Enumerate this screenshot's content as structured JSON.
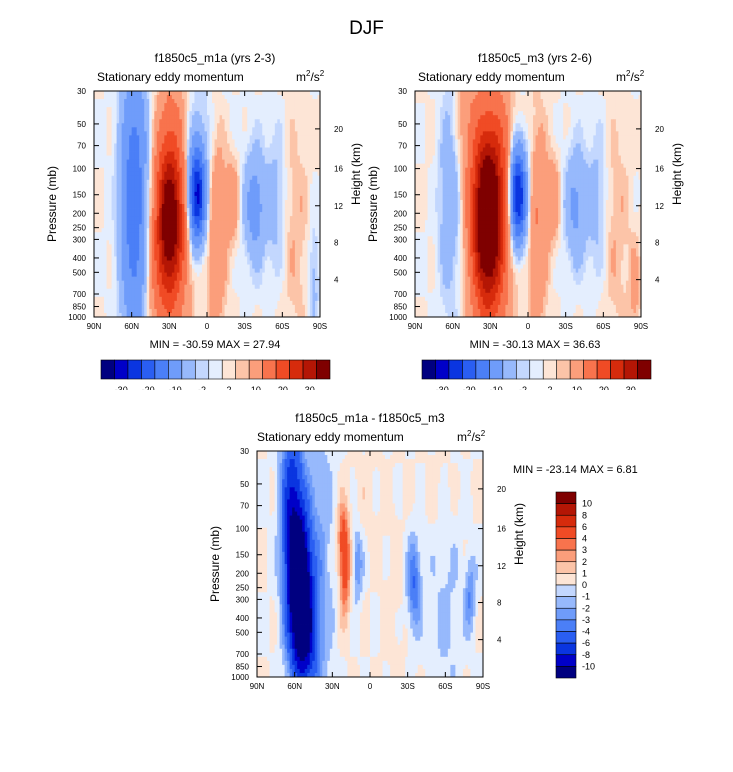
{
  "page_title": "DJF",
  "palette": {
    "full": [
      "#000080",
      "#0000c8",
      "#0a35e0",
      "#2a5ef2",
      "#4b7ff7",
      "#6f9cfa",
      "#97b9fc",
      "#c3d7fe",
      "#e4eefe",
      "#fde5d6",
      "#fcc4a8",
      "#fb9e7b",
      "#f8734d",
      "#f04b25",
      "#d62b0c",
      "#b41605",
      "#7f0000"
    ],
    "light_blue": "#e4eefe",
    "light_red": "#fde5d6"
  },
  "chart_data": [
    {
      "type": "heatmap",
      "id": "panel1",
      "title": "f1850c5_m1a (yrs 2-3)",
      "subtitle": "Stationary eddy momentum",
      "units_main": "m",
      "units_sup1": "2",
      "units_mid": "/s",
      "units_sup2": "2",
      "xlabel": "",
      "ylabel": "Pressure (mb)",
      "y2label": "Height (km)",
      "xticks": [
        "90N",
        "60N",
        "30N",
        "0",
        "30S",
        "60S",
        "90S"
      ],
      "xtick_lat": [
        90,
        60,
        30,
        0,
        -30,
        -60,
        -90
      ],
      "yticks": [
        "30",
        "50",
        "70",
        "100",
        "150",
        "200",
        "250",
        "300",
        "400",
        "500",
        "700",
        "850",
        "1000"
      ],
      "ytick_p": [
        30,
        50,
        70,
        100,
        150,
        200,
        250,
        300,
        400,
        500,
        700,
        850,
        1000
      ],
      "y2ticks": [
        "20",
        "16",
        "12",
        "8",
        "4"
      ],
      "y2tick_p": [
        54,
        100,
        178,
        315,
        560
      ],
      "minmax_text": "MIN = -30.59  MAX =  27.94",
      "min": -30.59,
      "max": 27.94,
      "blobs": [
        {
          "lat": 58,
          "p": 170,
          "slat": 7,
          "sp": 1.6,
          "v": -14
        },
        {
          "lat": 30,
          "p": 215,
          "slat": 7,
          "sp": 0.75,
          "v": 28
        },
        {
          "lat": 27,
          "p": 300,
          "slat": 10,
          "sp": 1.5,
          "v": 6
        },
        {
          "lat": 8,
          "p": 150,
          "slat": 4.5,
          "sp": 0.5,
          "v": -26
        },
        {
          "lat": -8,
          "p": 260,
          "slat": 5,
          "sp": 1.2,
          "v": 5
        },
        {
          "lat": -20,
          "p": 165,
          "slat": 4,
          "sp": 0.5,
          "v": 4
        },
        {
          "lat": -38,
          "p": 180,
          "slat": 6,
          "sp": 0.6,
          "v": -7
        },
        {
          "lat": -55,
          "p": 170,
          "slat": 6,
          "sp": 0.8,
          "v": -3
        },
        {
          "lat": -70,
          "p": 260,
          "slat": 8,
          "sp": 1.2,
          "v": 2
        },
        {
          "lat": -85,
          "p": 550,
          "slat": 3,
          "sp": 0.6,
          "v": -3
        },
        {
          "lat": 40,
          "p": 620,
          "slat": 8,
          "sp": 0.6,
          "v": 3
        },
        {
          "lat": 10,
          "p": 60,
          "slat": 15,
          "sp": 0.8,
          "v": -2
        },
        {
          "lat": 28,
          "p": 45,
          "slat": 8,
          "sp": 0.6,
          "v": 3
        }
      ],
      "colorbar": {
        "orientation": "horizontal",
        "labels": [
          "-30",
          "-20",
          "-10",
          "-2",
          "2",
          "10",
          "20",
          "30"
        ],
        "levels": [
          -30,
          -25,
          -20,
          -15,
          -10,
          -5,
          -2,
          -1,
          0,
          1,
          2,
          5,
          10,
          15,
          20,
          25,
          30
        ]
      }
    },
    {
      "type": "heatmap",
      "id": "panel2",
      "title": "f1850c5_m3 (yrs 2-6)",
      "subtitle": "Stationary eddy momentum",
      "units_main": "m",
      "units_sup1": "2",
      "units_mid": "/s",
      "units_sup2": "2",
      "xlabel": "",
      "ylabel": "Pressure (mb)",
      "y2label": "Height (km)",
      "xticks": [
        "90N",
        "60N",
        "30N",
        "0",
        "30S",
        "60S",
        "90S"
      ],
      "xtick_lat": [
        90,
        60,
        30,
        0,
        -30,
        -60,
        -90
      ],
      "yticks": [
        "30",
        "50",
        "70",
        "100",
        "150",
        "200",
        "250",
        "300",
        "400",
        "500",
        "700",
        "850",
        "1000"
      ],
      "ytick_p": [
        30,
        50,
        70,
        100,
        150,
        200,
        250,
        300,
        400,
        500,
        700,
        850,
        1000
      ],
      "y2ticks": [
        "20",
        "16",
        "12",
        "8",
        "4"
      ],
      "y2tick_p": [
        54,
        100,
        178,
        315,
        560
      ],
      "minmax_text": "MIN = -30.13  MAX =  36.63",
      "min": -30.13,
      "max": 36.63,
      "blobs": [
        {
          "lat": 62,
          "p": 120,
          "slat": 6,
          "sp": 1.3,
          "v": -5
        },
        {
          "lat": 32,
          "p": 210,
          "slat": 8,
          "sp": 0.85,
          "v": 34
        },
        {
          "lat": 30,
          "p": 320,
          "slat": 11,
          "sp": 1.6,
          "v": 8
        },
        {
          "lat": 8,
          "p": 150,
          "slat": 4.5,
          "sp": 0.5,
          "v": -26
        },
        {
          "lat": -8,
          "p": 260,
          "slat": 5,
          "sp": 1.2,
          "v": 5
        },
        {
          "lat": -20,
          "p": 165,
          "slat": 4,
          "sp": 0.5,
          "v": 4
        },
        {
          "lat": -38,
          "p": 180,
          "slat": 6,
          "sp": 0.6,
          "v": -6
        },
        {
          "lat": -55,
          "p": 170,
          "slat": 6,
          "sp": 0.8,
          "v": -3
        },
        {
          "lat": -70,
          "p": 260,
          "slat": 8,
          "sp": 1.2,
          "v": 2
        },
        {
          "lat": -85,
          "p": 650,
          "slat": 3,
          "sp": 0.5,
          "v": 3
        },
        {
          "lat": 50,
          "p": 45,
          "slat": 12,
          "sp": 0.7,
          "v": 3
        },
        {
          "lat": 20,
          "p": 60,
          "slat": 6,
          "sp": 0.6,
          "v": 3
        }
      ],
      "colorbar": {
        "orientation": "horizontal",
        "labels": [
          "-30",
          "-20",
          "-10",
          "-2",
          "2",
          "10",
          "20",
          "30"
        ],
        "levels": [
          -30,
          -25,
          -20,
          -15,
          -10,
          -5,
          -2,
          -1,
          0,
          1,
          2,
          5,
          10,
          15,
          20,
          25,
          30
        ]
      }
    },
    {
      "type": "heatmap",
      "id": "panel3",
      "title": "f1850c5_m1a - f1850c5_m3",
      "subtitle": "Stationary eddy momentum",
      "units_main": "m",
      "units_sup1": "2",
      "units_mid": "/s",
      "units_sup2": "2",
      "xlabel": "",
      "ylabel": "Pressure (mb)",
      "y2label": "Height (km)",
      "xticks": [
        "90N",
        "60N",
        "30N",
        "0",
        "30S",
        "60S",
        "90S"
      ],
      "xtick_lat": [
        90,
        60,
        30,
        0,
        -30,
        -60,
        -90
      ],
      "yticks": [
        "30",
        "50",
        "70",
        "100",
        "150",
        "200",
        "250",
        "300",
        "400",
        "500",
        "700",
        "850",
        "1000"
      ],
      "ytick_p": [
        30,
        50,
        70,
        100,
        150,
        200,
        250,
        300,
        400,
        500,
        700,
        850,
        1000
      ],
      "y2ticks": [
        "20",
        "16",
        "12",
        "8",
        "4"
      ],
      "y2tick_p": [
        54,
        100,
        178,
        315,
        560
      ],
      "minmax_text": "MIN = -23.14  MAX =  6.81",
      "min": -23.14,
      "max": 6.81,
      "blobs": [
        {
          "lat": 55,
          "p": 260,
          "slat": 6,
          "sp": 0.8,
          "v": -14
        },
        {
          "lat": 62,
          "p": 90,
          "slat": 6,
          "sp": 1.2,
          "v": -8
        },
        {
          "lat": 50,
          "p": 600,
          "slat": 7,
          "sp": 0.6,
          "v": -5
        },
        {
          "lat": 40,
          "p": 150,
          "slat": 8,
          "sp": 1.6,
          "v": -2
        },
        {
          "lat": 20,
          "p": 190,
          "slat": 3,
          "sp": 0.5,
          "v": 5
        },
        {
          "lat": 22,
          "p": 110,
          "slat": 3,
          "sp": 0.35,
          "v": 3
        },
        {
          "lat": 10,
          "p": 170,
          "slat": 3,
          "sp": 0.4,
          "v": -3
        },
        {
          "lat": -35,
          "p": 240,
          "slat": 4,
          "sp": 0.5,
          "v": -4
        },
        {
          "lat": -80,
          "p": 280,
          "slat": 3,
          "sp": 0.4,
          "v": -3
        },
        {
          "lat": 5,
          "p": 70,
          "slat": 10,
          "sp": 0.6,
          "v": 0.5
        },
        {
          "lat": -20,
          "p": 300,
          "slat": 6,
          "sp": 1.0,
          "v": 0.5
        },
        {
          "lat": -55,
          "p": 60,
          "slat": 8,
          "sp": 0.6,
          "v": 0.5
        },
        {
          "lat": -60,
          "p": 350,
          "slat": 10,
          "sp": 1.2,
          "v": -1.2
        }
      ],
      "colorbar": {
        "orientation": "vertical",
        "labels": [
          "10",
          "8",
          "6",
          "4",
          "3",
          "2",
          "1",
          "0",
          "-1",
          "-2",
          "-3",
          "-4",
          "-6",
          "-8",
          "-10"
        ],
        "levels": [
          -10,
          -8,
          -6,
          -4,
          -3,
          -2,
          -1,
          0,
          1,
          2,
          3,
          4,
          6,
          8,
          10
        ]
      }
    }
  ]
}
